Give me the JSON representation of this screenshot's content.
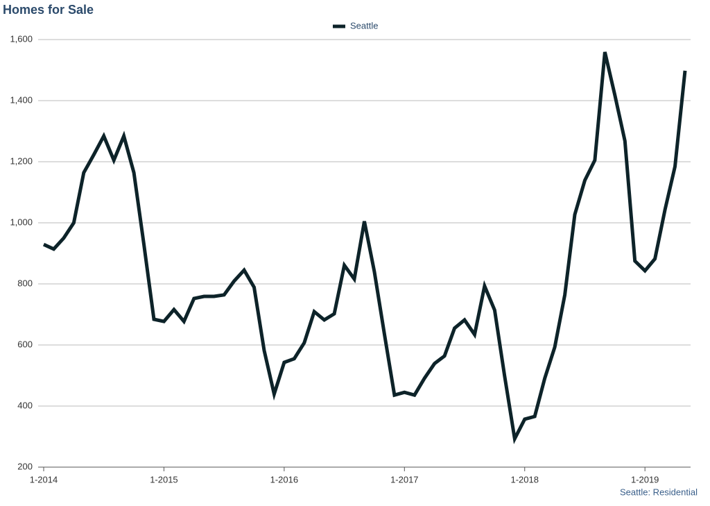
{
  "chart_data": {
    "type": "line",
    "title": "Homes for Sale",
    "footer": "Seattle: Residential",
    "categories": [
      "1-2014",
      null,
      null,
      null,
      null,
      null,
      null,
      null,
      null,
      null,
      null,
      null,
      "1-2015",
      null,
      null,
      null,
      null,
      null,
      null,
      null,
      null,
      null,
      null,
      null,
      "1-2016",
      null,
      null,
      null,
      null,
      null,
      null,
      null,
      null,
      null,
      null,
      null,
      "1-2017",
      null,
      null,
      null,
      null,
      null,
      null,
      null,
      null,
      null,
      null,
      null,
      "1-2018",
      null,
      null,
      null,
      null,
      null,
      null,
      null,
      null,
      null,
      null,
      null,
      "1-2019",
      null,
      null,
      null,
      null
    ],
    "series": [
      {
        "name": "Seattle",
        "color": "#0d2329",
        "values": [
          929,
          914,
          950,
          1000,
          1164,
          1223,
          1284,
          1205,
          1284,
          1164,
          930,
          684,
          677,
          716,
          677,
          752,
          759,
          759,
          764,
          809,
          845,
          789,
          582,
          439,
          543,
          555,
          607,
          709,
          682,
          702,
          861,
          816,
          1005,
          839,
          636,
          436,
          445,
          436,
          491,
          539,
          564,
          655,
          682,
          634,
          793,
          714,
          498,
          293,
          357,
          366,
          491,
          593,
          764,
          1027,
          1139,
          1205,
          1559,
          1418,
          1268,
          875,
          843,
          882,
          1043,
          1184,
          1498
        ]
      }
    ],
    "ylim": [
      200,
      1600
    ],
    "yticks": [
      200,
      {
        "value": 400,
        "label": "400"
      },
      600,
      800,
      {
        "value": 1000,
        "label": "1,000"
      },
      {
        "value": 1200,
        "label": "1,200"
      },
      {
        "value": 1400,
        "label": "1,400"
      },
      {
        "value": 1600,
        "label": "1,600"
      }
    ],
    "grid": true,
    "legend": "top"
  }
}
